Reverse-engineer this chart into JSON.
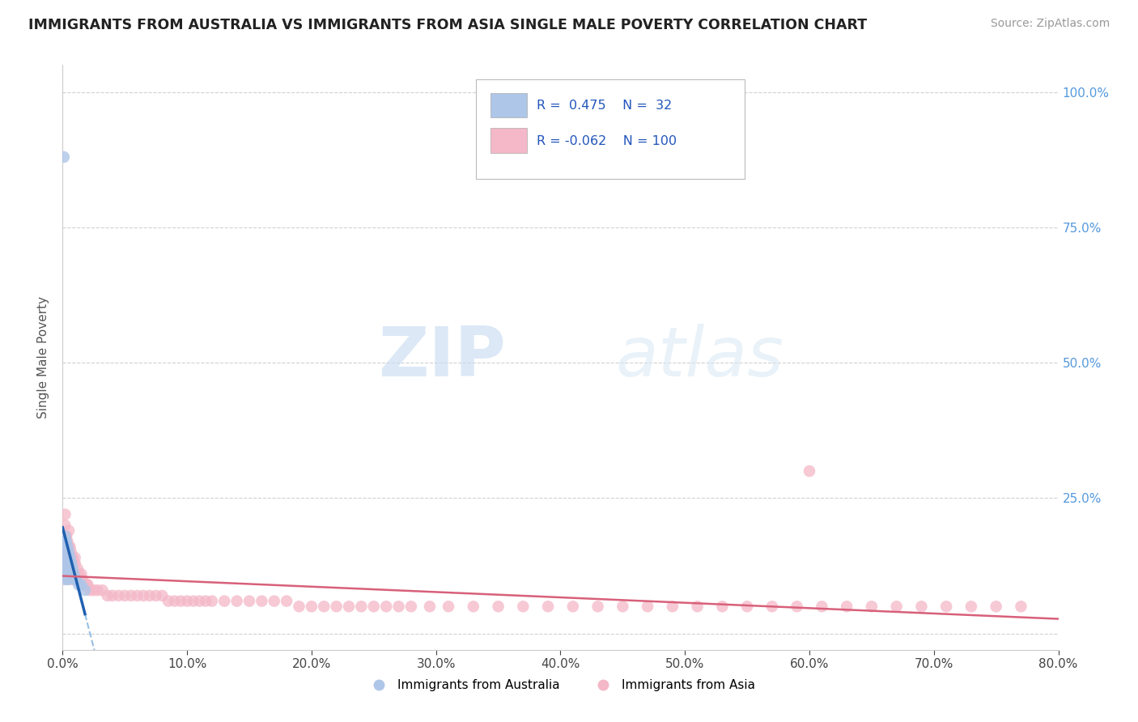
{
  "title": "IMMIGRANTS FROM AUSTRALIA VS IMMIGRANTS FROM ASIA SINGLE MALE POVERTY CORRELATION CHART",
  "source": "Source: ZipAtlas.com",
  "ylabel_label": "Single Male Poverty",
  "xlim": [
    0.0,
    0.8
  ],
  "ylim": [
    -0.03,
    1.05
  ],
  "plot_ylim": [
    0.0,
    1.0
  ],
  "r_australia": 0.475,
  "n_australia": 32,
  "r_asia": -0.062,
  "n_asia": 100,
  "color_australia": "#aec6e8",
  "color_asia": "#f4b8c8",
  "color_australia_line": "#2060b0",
  "color_asia_line": "#d8607a",
  "color_dashed": "#8ab8e0",
  "australia_scatter_x": [
    0.001,
    0.001,
    0.001,
    0.001,
    0.001,
    0.002,
    0.002,
    0.002,
    0.002,
    0.002,
    0.003,
    0.003,
    0.003,
    0.003,
    0.003,
    0.004,
    0.004,
    0.004,
    0.005,
    0.005,
    0.005,
    0.006,
    0.006,
    0.007,
    0.008,
    0.009,
    0.01,
    0.011,
    0.013,
    0.015,
    0.018,
    0.001
  ],
  "australia_scatter_y": [
    0.17,
    0.15,
    0.13,
    0.12,
    0.11,
    0.18,
    0.16,
    0.14,
    0.12,
    0.1,
    0.17,
    0.15,
    0.14,
    0.13,
    0.11,
    0.16,
    0.14,
    0.12,
    0.15,
    0.13,
    0.1,
    0.14,
    0.12,
    0.13,
    0.12,
    0.11,
    0.1,
    0.1,
    0.09,
    0.09,
    0.08,
    0.88
  ],
  "asia_scatter_x": [
    0.001,
    0.001,
    0.001,
    0.002,
    0.002,
    0.002,
    0.003,
    0.003,
    0.003,
    0.004,
    0.004,
    0.005,
    0.005,
    0.005,
    0.006,
    0.006,
    0.007,
    0.007,
    0.008,
    0.008,
    0.009,
    0.01,
    0.01,
    0.012,
    0.013,
    0.015,
    0.016,
    0.018,
    0.02,
    0.022,
    0.025,
    0.028,
    0.032,
    0.036,
    0.04,
    0.045,
    0.05,
    0.055,
    0.06,
    0.065,
    0.07,
    0.075,
    0.08,
    0.085,
    0.09,
    0.095,
    0.1,
    0.105,
    0.11,
    0.115,
    0.12,
    0.13,
    0.14,
    0.15,
    0.16,
    0.17,
    0.18,
    0.19,
    0.2,
    0.21,
    0.22,
    0.23,
    0.24,
    0.25,
    0.26,
    0.27,
    0.28,
    0.295,
    0.31,
    0.33,
    0.35,
    0.37,
    0.39,
    0.41,
    0.43,
    0.45,
    0.47,
    0.49,
    0.51,
    0.53,
    0.55,
    0.57,
    0.59,
    0.61,
    0.63,
    0.65,
    0.67,
    0.69,
    0.71,
    0.73,
    0.75,
    0.77,
    0.002,
    0.003,
    0.005,
    0.007,
    0.01,
    0.015,
    0.02,
    0.6
  ],
  "asia_scatter_y": [
    0.17,
    0.14,
    0.11,
    0.2,
    0.16,
    0.12,
    0.18,
    0.14,
    0.1,
    0.17,
    0.13,
    0.19,
    0.15,
    0.11,
    0.16,
    0.12,
    0.15,
    0.11,
    0.14,
    0.1,
    0.13,
    0.14,
    0.1,
    0.12,
    0.11,
    0.1,
    0.1,
    0.09,
    0.09,
    0.08,
    0.08,
    0.08,
    0.08,
    0.07,
    0.07,
    0.07,
    0.07,
    0.07,
    0.07,
    0.07,
    0.07,
    0.07,
    0.07,
    0.06,
    0.06,
    0.06,
    0.06,
    0.06,
    0.06,
    0.06,
    0.06,
    0.06,
    0.06,
    0.06,
    0.06,
    0.06,
    0.06,
    0.05,
    0.05,
    0.05,
    0.05,
    0.05,
    0.05,
    0.05,
    0.05,
    0.05,
    0.05,
    0.05,
    0.05,
    0.05,
    0.05,
    0.05,
    0.05,
    0.05,
    0.05,
    0.05,
    0.05,
    0.05,
    0.05,
    0.05,
    0.05,
    0.05,
    0.05,
    0.05,
    0.05,
    0.05,
    0.05,
    0.05,
    0.05,
    0.05,
    0.05,
    0.05,
    0.22,
    0.18,
    0.16,
    0.14,
    0.13,
    0.11,
    0.09,
    0.3
  ],
  "watermark_zip": "ZIP",
  "watermark_atlas": "atlas",
  "background_color": "#ffffff",
  "grid_color": "#cccccc",
  "right_tick_color": "#5599dd",
  "x_tick_vals": [
    0.0,
    0.1,
    0.2,
    0.3,
    0.4,
    0.5,
    0.6,
    0.7,
    0.8
  ],
  "x_tick_labels": [
    "0.0%",
    "10.0%",
    "20.0%",
    "30.0%",
    "40.0%",
    "50.0%",
    "60.0%",
    "70.0%",
    "80.0%"
  ],
  "y_tick_vals": [
    0.0,
    0.25,
    0.5,
    0.75,
    1.0
  ],
  "y_tick_labels_right": [
    "",
    "25.0%",
    "50.0%",
    "75.0%",
    "100.0%"
  ]
}
